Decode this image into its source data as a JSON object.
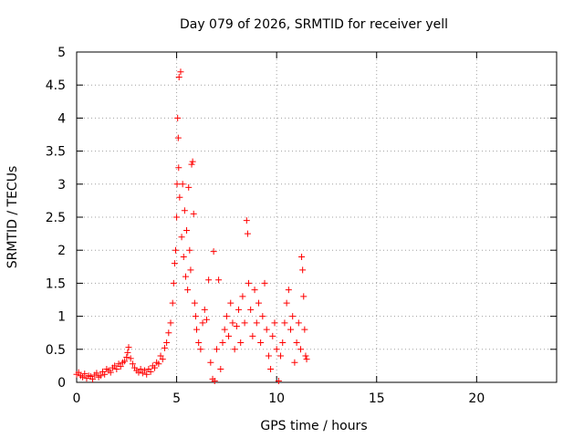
{
  "chart_data": {
    "type": "scatter",
    "title": "Day 079 of 2026, SRMTID for receiver yell",
    "xlabel": "GPS time / hours",
    "ylabel": "SRMTID / TECUs",
    "xlim": [
      0,
      24
    ],
    "ylim": [
      0,
      5
    ],
    "xticks": [
      0,
      5,
      10,
      15,
      20
    ],
    "xtick_labels": [
      "0",
      "5",
      "10",
      "15",
      "20"
    ],
    "yticks": [
      0,
      0.5,
      1,
      1.5,
      2,
      2.5,
      3,
      3.5,
      4,
      4.5,
      5
    ],
    "ytick_labels": [
      "0",
      "0.5",
      "1",
      "1.5",
      "2",
      "2.5",
      "3",
      "3.5",
      "4",
      "4.5",
      "5"
    ],
    "grid": true,
    "marker": "+",
    "color": "#ff0000",
    "series": [
      {
        "name": "SRMTID",
        "points": [
          [
            0.0,
            0.12
          ],
          [
            0.1,
            0.15
          ],
          [
            0.2,
            0.1
          ],
          [
            0.3,
            0.08
          ],
          [
            0.4,
            0.13
          ],
          [
            0.5,
            0.06
          ],
          [
            0.6,
            0.1
          ],
          [
            0.7,
            0.09
          ],
          [
            0.8,
            0.05
          ],
          [
            0.9,
            0.11
          ],
          [
            1.0,
            0.14
          ],
          [
            1.1,
            0.08
          ],
          [
            1.2,
            0.1
          ],
          [
            1.3,
            0.16
          ],
          [
            1.4,
            0.12
          ],
          [
            1.5,
            0.2
          ],
          [
            1.6,
            0.18
          ],
          [
            1.7,
            0.15
          ],
          [
            1.8,
            0.22
          ],
          [
            1.9,
            0.25
          ],
          [
            2.0,
            0.2
          ],
          [
            2.1,
            0.28
          ],
          [
            2.2,
            0.24
          ],
          [
            2.3,
            0.3
          ],
          [
            2.4,
            0.32
          ],
          [
            2.5,
            0.38
          ],
          [
            2.55,
            0.45
          ],
          [
            2.6,
            0.53
          ],
          [
            2.7,
            0.36
          ],
          [
            2.8,
            0.28
          ],
          [
            2.9,
            0.22
          ],
          [
            3.0,
            0.18
          ],
          [
            3.1,
            0.15
          ],
          [
            3.2,
            0.2
          ],
          [
            3.3,
            0.14
          ],
          [
            3.4,
            0.18
          ],
          [
            3.5,
            0.12
          ],
          [
            3.6,
            0.2
          ],
          [
            3.7,
            0.16
          ],
          [
            3.8,
            0.25
          ],
          [
            3.9,
            0.22
          ],
          [
            4.0,
            0.3
          ],
          [
            4.1,
            0.28
          ],
          [
            4.2,
            0.4
          ],
          [
            4.3,
            0.35
          ],
          [
            4.4,
            0.52
          ],
          [
            4.5,
            0.6
          ],
          [
            4.6,
            0.75
          ],
          [
            4.7,
            0.9
          ],
          [
            4.8,
            1.2
          ],
          [
            4.85,
            1.5
          ],
          [
            4.9,
            1.8
          ],
          [
            4.95,
            2.0
          ],
          [
            5.0,
            2.5
          ],
          [
            5.02,
            3.0
          ],
          [
            5.05,
            4.0
          ],
          [
            5.08,
            3.7
          ],
          [
            5.1,
            3.25
          ],
          [
            5.12,
            4.62
          ],
          [
            5.15,
            2.8
          ],
          [
            5.2,
            4.7
          ],
          [
            5.25,
            2.2
          ],
          [
            5.3,
            3.0
          ],
          [
            5.35,
            1.9
          ],
          [
            5.4,
            2.6
          ],
          [
            5.45,
            1.6
          ],
          [
            5.5,
            2.3
          ],
          [
            5.55,
            1.4
          ],
          [
            5.6,
            2.95
          ],
          [
            5.65,
            2.0
          ],
          [
            5.7,
            1.7
          ],
          [
            5.75,
            3.3
          ],
          [
            5.8,
            3.34
          ],
          [
            5.85,
            2.55
          ],
          [
            5.9,
            1.2
          ],
          [
            5.95,
            1.0
          ],
          [
            6.0,
            0.8
          ],
          [
            6.1,
            0.6
          ],
          [
            6.2,
            0.5
          ],
          [
            6.3,
            0.9
          ],
          [
            6.4,
            1.1
          ],
          [
            6.5,
            0.95
          ],
          [
            6.6,
            1.55
          ],
          [
            6.7,
            0.3
          ],
          [
            6.8,
            0.05
          ],
          [
            6.85,
            1.98
          ],
          [
            6.9,
            0.02
          ],
          [
            7.0,
            0.5
          ],
          [
            7.1,
            1.55
          ],
          [
            7.2,
            0.2
          ],
          [
            7.3,
            0.6
          ],
          [
            7.4,
            0.8
          ],
          [
            7.5,
            1.0
          ],
          [
            7.6,
            0.7
          ],
          [
            7.7,
            1.2
          ],
          [
            7.8,
            0.9
          ],
          [
            7.9,
            0.5
          ],
          [
            8.0,
            0.85
          ],
          [
            8.1,
            1.1
          ],
          [
            8.2,
            0.6
          ],
          [
            8.3,
            1.3
          ],
          [
            8.4,
            0.9
          ],
          [
            8.5,
            2.45
          ],
          [
            8.55,
            2.25
          ],
          [
            8.6,
            1.5
          ],
          [
            8.7,
            1.1
          ],
          [
            8.8,
            0.7
          ],
          [
            8.9,
            1.4
          ],
          [
            9.0,
            0.9
          ],
          [
            9.1,
            1.2
          ],
          [
            9.2,
            0.6
          ],
          [
            9.3,
            1.0
          ],
          [
            9.4,
            1.5
          ],
          [
            9.5,
            0.8
          ],
          [
            9.6,
            0.4
          ],
          [
            9.7,
            0.2
          ],
          [
            9.8,
            0.7
          ],
          [
            9.9,
            0.9
          ],
          [
            10.0,
            0.5
          ],
          [
            10.1,
            0.02
          ],
          [
            10.2,
            0.4
          ],
          [
            10.3,
            0.6
          ],
          [
            10.4,
            0.9
          ],
          [
            10.5,
            1.2
          ],
          [
            10.6,
            1.4
          ],
          [
            10.7,
            0.8
          ],
          [
            10.8,
            1.0
          ],
          [
            10.9,
            0.3
          ],
          [
            11.0,
            0.6
          ],
          [
            11.1,
            0.9
          ],
          [
            11.2,
            0.5
          ],
          [
            11.25,
            1.9
          ],
          [
            11.3,
            1.7
          ],
          [
            11.35,
            1.3
          ],
          [
            11.4,
            0.8
          ],
          [
            11.45,
            0.4
          ],
          [
            11.5,
            0.35
          ]
        ]
      }
    ]
  }
}
